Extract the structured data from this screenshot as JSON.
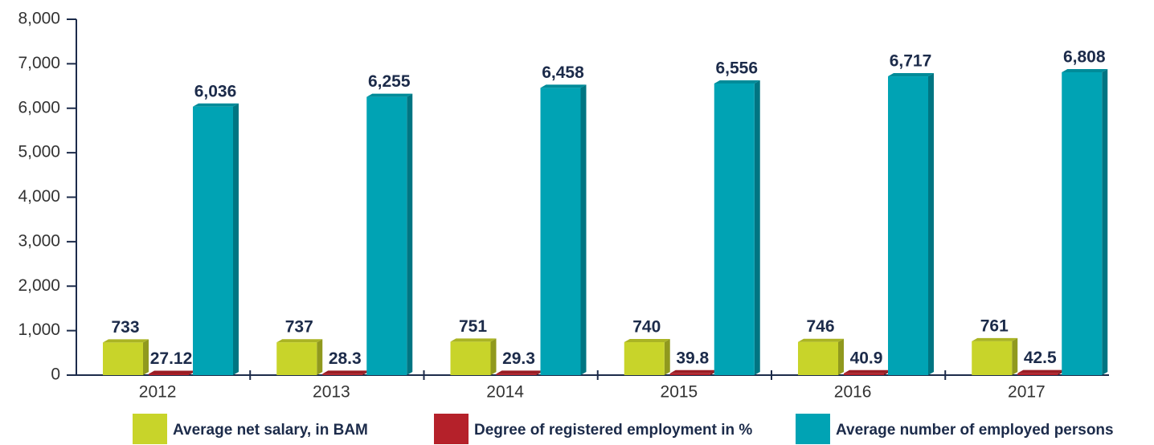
{
  "chart_data": {
    "type": "bar3d",
    "categories": [
      "2012",
      "2013",
      "2014",
      "2015",
      "2016",
      "2017"
    ],
    "series": [
      {
        "name": "Average net salary, in BAM",
        "color": "#c8d42a",
        "values": [
          733,
          737,
          751,
          740,
          746,
          761
        ]
      },
      {
        "name": "Degree of registered employment in %",
        "color": "#b5212a",
        "values": [
          27.12,
          28.3,
          29.3,
          39.8,
          40.9,
          42.5
        ]
      },
      {
        "name": "Average number of employed persons",
        "color": "#00a3b4",
        "values": [
          6036,
          6255,
          6458,
          6556,
          6717,
          6808
        ],
        "value_labels": [
          "6,036",
          "6,255",
          "6,458",
          "6,556",
          "6,717",
          "6,808"
        ]
      }
    ],
    "ylim": [
      0,
      8000
    ],
    "yticks": [
      0,
      {
        "value": 1000,
        "label": "1,000"
      },
      {
        "value": 2000,
        "label": "2,000"
      },
      {
        "value": 3000,
        "label": "3,000"
      },
      {
        "value": 4000,
        "label": "4,000"
      },
      {
        "value": 5000,
        "label": "5,000"
      },
      {
        "value": 6000,
        "label": "6,000"
      },
      {
        "value": 7000,
        "label": "7,000"
      },
      {
        "value": 8000,
        "label": "8,000"
      }
    ]
  }
}
